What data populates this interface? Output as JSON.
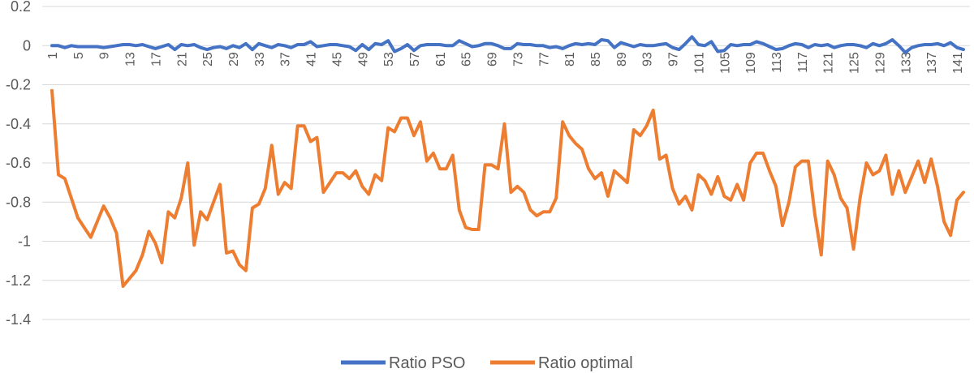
{
  "chart_data": {
    "type": "line",
    "title": "",
    "xlabel": "",
    "ylabel": "",
    "ylim": [
      -1.4,
      0.2
    ],
    "yticks": [
      0.2,
      0,
      -0.2,
      -0.4,
      -0.6,
      -0.8,
      -1,
      -1.2,
      -1.4
    ],
    "ytick_labels": [
      "0.2",
      "0",
      "-0.2",
      "-0.4",
      "-0.6",
      "-0.8",
      "-1",
      "-1.2",
      "-1.4"
    ],
    "x_range": [
      1,
      142
    ],
    "xtick_values": [
      1,
      5,
      9,
      13,
      17,
      21,
      25,
      29,
      33,
      37,
      41,
      45,
      49,
      53,
      57,
      61,
      65,
      69,
      73,
      77,
      81,
      85,
      89,
      93,
      97,
      101,
      105,
      109,
      113,
      117,
      121,
      125,
      129,
      133,
      137,
      141
    ],
    "xtick_labels": [
      "1",
      "5",
      "9",
      "13",
      "17",
      "21",
      "25",
      "29",
      "33",
      "37",
      "41",
      "45",
      "49",
      "53",
      "57",
      "61",
      "65",
      "69",
      "73",
      "77",
      "81",
      "85",
      "89",
      "93",
      "97",
      "101",
      "105",
      "109",
      "113",
      "117",
      "121",
      "125",
      "129",
      "133",
      "137",
      "141"
    ],
    "grid": true,
    "legend_position": "bottom",
    "series": [
      {
        "name": "Ratio PSO",
        "color": "#4472C4",
        "values": [
          0.0,
          0.0,
          -0.01,
          0.0,
          -0.005,
          -0.005,
          -0.005,
          -0.005,
          -0.01,
          -0.005,
          0.0,
          0.005,
          0.005,
          0.0,
          0.005,
          -0.005,
          -0.015,
          -0.005,
          0.005,
          -0.02,
          0.005,
          0.0,
          0.005,
          -0.01,
          -0.02,
          -0.01,
          -0.005,
          -0.015,
          0.0,
          -0.01,
          0.01,
          -0.02,
          0.01,
          0.0,
          -0.01,
          0.005,
          0.0,
          -0.01,
          0.005,
          0.005,
          0.02,
          -0.005,
          0.0,
          0.005,
          0.005,
          0.0,
          -0.005,
          -0.025,
          0.005,
          -0.02,
          0.01,
          0.005,
          0.025,
          -0.03,
          -0.015,
          0.005,
          -0.025,
          0.0,
          0.005,
          0.005,
          0.005,
          0.0,
          0.0,
          0.025,
          0.01,
          -0.005,
          0.0,
          0.01,
          0.01,
          0.0,
          -0.015,
          -0.015,
          0.01,
          0.005,
          0.005,
          0.0,
          0.0,
          -0.01,
          -0.005,
          -0.015,
          0.0,
          0.01,
          0.005,
          0.01,
          0.005,
          0.03,
          0.025,
          -0.01,
          0.015,
          0.005,
          -0.005,
          0.005,
          0.0,
          0.0,
          0.005,
          0.01,
          -0.01,
          -0.02,
          0.01,
          0.045,
          0.005,
          0.0,
          0.02,
          -0.03,
          -0.025,
          0.005,
          0.0,
          0.005,
          0.005,
          0.02,
          0.01,
          -0.005,
          -0.02,
          -0.015,
          0.0,
          0.01,
          0.005,
          -0.01,
          0.005,
          0.0,
          0.005,
          -0.01,
          0.0,
          0.005,
          0.005,
          0.0,
          -0.01,
          0.01,
          0.0,
          0.01,
          0.03,
          0.0,
          -0.035,
          -0.01,
          0.0,
          0.005,
          0.005,
          0.01,
          0.0,
          0.015,
          -0.01,
          -0.02
        ]
      },
      {
        "name": "Ratio optimal",
        "color": "#ED7D31",
        "values": [
          -0.23,
          -0.66,
          -0.68,
          -0.78,
          -0.88,
          -0.93,
          -0.98,
          -0.9,
          -0.82,
          -0.88,
          -0.96,
          -1.23,
          -1.19,
          -1.15,
          -1.07,
          -0.95,
          -1.01,
          -1.11,
          -0.85,
          -0.88,
          -0.78,
          -0.6,
          -1.02,
          -0.85,
          -0.89,
          -0.8,
          -0.71,
          -1.06,
          -1.05,
          -1.12,
          -1.15,
          -0.83,
          -0.81,
          -0.73,
          -0.51,
          -0.76,
          -0.7,
          -0.73,
          -0.41,
          -0.41,
          -0.49,
          -0.47,
          -0.75,
          -0.7,
          -0.65,
          -0.65,
          -0.68,
          -0.64,
          -0.72,
          -0.76,
          -0.66,
          -0.69,
          -0.42,
          -0.44,
          -0.37,
          -0.37,
          -0.46,
          -0.39,
          -0.59,
          -0.55,
          -0.63,
          -0.63,
          -0.56,
          -0.84,
          -0.93,
          -0.94,
          -0.94,
          -0.61,
          -0.61,
          -0.63,
          -0.4,
          -0.75,
          -0.72,
          -0.75,
          -0.84,
          -0.87,
          -0.85,
          -0.85,
          -0.78,
          -0.39,
          -0.46,
          -0.5,
          -0.53,
          -0.63,
          -0.68,
          -0.65,
          -0.77,
          -0.64,
          -0.67,
          -0.7,
          -0.43,
          -0.46,
          -0.41,
          -0.33,
          -0.58,
          -0.56,
          -0.73,
          -0.81,
          -0.77,
          -0.84,
          -0.66,
          -0.69,
          -0.76,
          -0.67,
          -0.77,
          -0.79,
          -0.71,
          -0.79,
          -0.6,
          -0.55,
          -0.55,
          -0.64,
          -0.72,
          -0.92,
          -0.8,
          -0.62,
          -0.59,
          -0.59,
          -0.86,
          -1.07,
          -0.59,
          -0.66,
          -0.78,
          -0.83,
          -1.04,
          -0.78,
          -0.6,
          -0.66,
          -0.64,
          -0.56,
          -0.76,
          -0.64,
          -0.75,
          -0.67,
          -0.59,
          -0.7,
          -0.58,
          -0.72,
          -0.9,
          -0.97,
          -0.79,
          -0.75
        ]
      }
    ]
  }
}
